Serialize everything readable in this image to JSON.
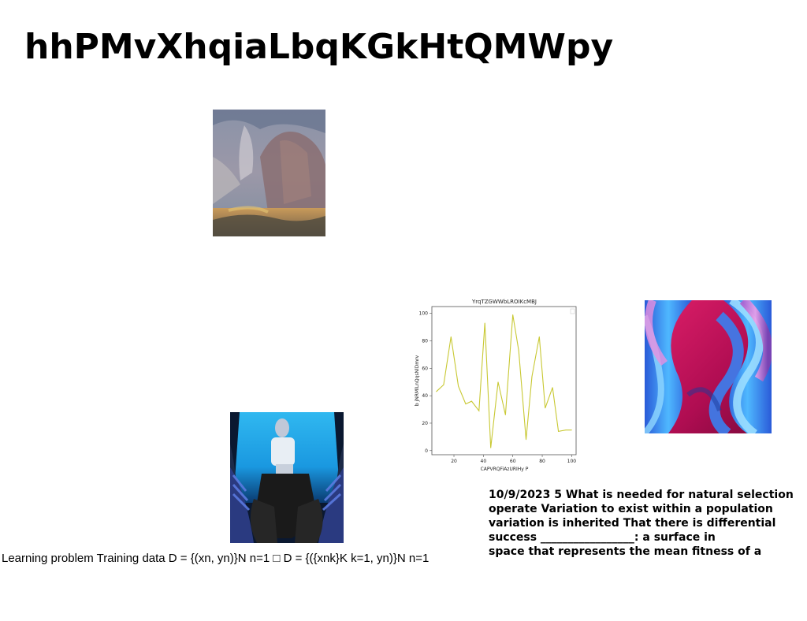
{
  "page": {
    "title": "hhPMvXhqiaLbqKGkHtQMWpy"
  },
  "images": {
    "painting": {
      "icon": "landscape-painting-image"
    },
    "robot": {
      "icon": "robot-figure-photo"
    },
    "wave": {
      "icon": "abstract-wave-image",
      "colors": [
        "#3fa0f0",
        "#c8105a",
        "#e080c8",
        "#1a3a9a"
      ]
    }
  },
  "caption_left": "Learning problem Training data D = {(xn, yn)}N n=1 □ D = {({xnk}K k=1, yn)}N n=1",
  "paragraph": "10/9/2023 5 What is needed for natural selection\noperate Variation to exist within a population\nvariation is inherited That there is differential\nsuccess _________________: a surface in\nspace that represents the mean fitness of a",
  "chart_data": {
    "type": "line",
    "title": "YrqTZGWWbLROIKcMBJ",
    "xlabel": "CAPVRQFiAzURIHy P",
    "ylabel": "b jNRMlLnQqsNlDmrv",
    "xlim": [
      5,
      103
    ],
    "ylim": [
      -3,
      105
    ],
    "xticks": [
      20,
      40,
      60,
      80,
      100
    ],
    "yticks": [
      0,
      20,
      40,
      60,
      80,
      100
    ],
    "line_color": "#c8c832",
    "series": [
      {
        "x": [
          8,
          13,
          18,
          23,
          28,
          32,
          37,
          41,
          45,
          50,
          55,
          60,
          64,
          69,
          73,
          78,
          82,
          87,
          91,
          96,
          100
        ],
        "values": [
          43,
          48,
          83,
          47,
          34,
          36,
          29,
          93,
          2,
          50,
          26,
          99,
          73,
          8,
          54,
          83,
          31,
          46,
          14,
          15,
          15
        ]
      }
    ]
  }
}
